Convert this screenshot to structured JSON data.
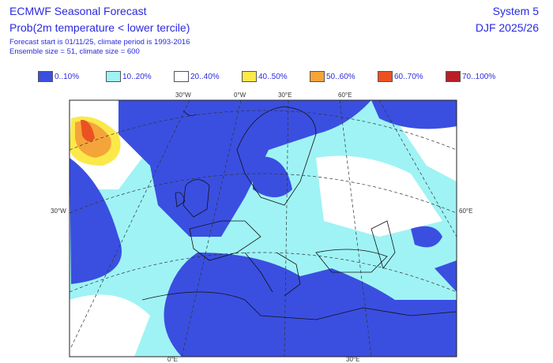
{
  "header": {
    "title": "ECMWF Seasonal Forecast",
    "subtitle": "Prob(2m temperature < lower tercile)",
    "info1": "Forecast start is 01/11/25, climate period is 1993-2016",
    "info2": "Ensemble size = 51, climate size = 600",
    "system": "System 5",
    "season": "DJF 2025/26"
  },
  "legend": [
    {
      "label": "0..10%",
      "color": "#3a4fe0"
    },
    {
      "label": "10..20%",
      "color": "#9ff3f5"
    },
    {
      "label": "20..40%",
      "color": "#ffffff"
    },
    {
      "label": "40..50%",
      "color": "#fbe94a"
    },
    {
      "label": "50..60%",
      "color": "#f5a43a"
    },
    {
      "label": "60..70%",
      "color": "#eb5222"
    },
    {
      "label": "70..100%",
      "color": "#b81f25"
    }
  ],
  "axis_labels": {
    "top": [
      "30°W",
      "0°W",
      "30°E",
      "60°E"
    ],
    "left": "30°W",
    "right": "60°E",
    "bottom": [
      "0°E",
      "30°E"
    ]
  }
}
